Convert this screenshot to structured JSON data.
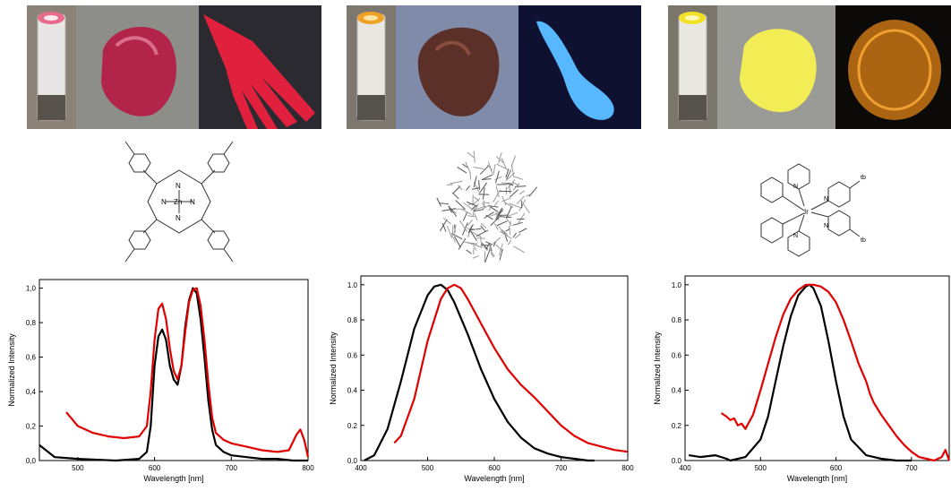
{
  "chart_data": [
    {
      "type": "line",
      "xlabel": "Wavelength [nm]",
      "ylabel": "Normalized Intensity",
      "xlim": [
        450,
        800
      ],
      "ylim": [
        0,
        1.05
      ],
      "xticks": [
        "500",
        "600",
        "700",
        "800"
      ],
      "yticks": [
        "0,0",
        "0,2",
        "0,4",
        "0,6",
        "0,8",
        "1,0"
      ],
      "series": [
        {
          "color": "#000000",
          "x": [
            450,
            470,
            500,
            550,
            580,
            590,
            595,
            600,
            605,
            610,
            615,
            620,
            625,
            630,
            635,
            640,
            645,
            650,
            655,
            660,
            665,
            670,
            675,
            680,
            690,
            700,
            720,
            740,
            760,
            780,
            800
          ],
          "y": [
            0.09,
            0.02,
            0.01,
            0.0,
            0.01,
            0.05,
            0.2,
            0.55,
            0.72,
            0.76,
            0.7,
            0.55,
            0.47,
            0.44,
            0.55,
            0.78,
            0.93,
            1.0,
            0.97,
            0.82,
            0.6,
            0.35,
            0.18,
            0.09,
            0.05,
            0.03,
            0.02,
            0.01,
            0.01,
            0.0,
            0.0
          ]
        },
        {
          "color": "#e00000",
          "x": [
            485,
            500,
            520,
            540,
            560,
            580,
            590,
            595,
            600,
            605,
            610,
            615,
            620,
            625,
            630,
            635,
            640,
            645,
            650,
            655,
            660,
            665,
            670,
            675,
            680,
            690,
            700,
            720,
            740,
            760,
            775,
            785,
            790,
            795,
            800
          ],
          "y": [
            0.28,
            0.2,
            0.16,
            0.14,
            0.13,
            0.14,
            0.2,
            0.4,
            0.7,
            0.88,
            0.91,
            0.82,
            0.65,
            0.52,
            0.47,
            0.55,
            0.75,
            0.92,
            0.99,
            1.0,
            0.9,
            0.7,
            0.45,
            0.25,
            0.16,
            0.12,
            0.1,
            0.08,
            0.06,
            0.05,
            0.06,
            0.15,
            0.18,
            0.12,
            0.02
          ]
        }
      ]
    },
    {
      "type": "line",
      "xlabel": "Wavelength [nm]",
      "ylabel": "Normalized Intensity",
      "xlim": [
        400,
        800
      ],
      "ylim": [
        0,
        1.05
      ],
      "xticks": [
        "400",
        "500",
        "600",
        "700",
        "800"
      ],
      "yticks": [
        "0.0",
        "0.2",
        "0.4",
        "0.6",
        "0.8",
        "1.0"
      ],
      "series": [
        {
          "color": "#000000",
          "x": [
            405,
            420,
            440,
            460,
            480,
            500,
            510,
            520,
            530,
            540,
            560,
            580,
            600,
            620,
            640,
            660,
            680,
            700,
            720,
            740,
            750
          ],
          "y": [
            0.0,
            0.03,
            0.18,
            0.45,
            0.75,
            0.94,
            0.99,
            1.0,
            0.97,
            0.9,
            0.72,
            0.52,
            0.35,
            0.22,
            0.13,
            0.07,
            0.04,
            0.02,
            0.01,
            0.0,
            0.0
          ]
        },
        {
          "color": "#e00000",
          "x": [
            450,
            460,
            480,
            500,
            520,
            530,
            540,
            550,
            560,
            580,
            600,
            620,
            640,
            660,
            680,
            700,
            720,
            740,
            760,
            780,
            800
          ],
          "y": [
            0.1,
            0.14,
            0.35,
            0.68,
            0.92,
            0.98,
            1.0,
            0.98,
            0.92,
            0.78,
            0.64,
            0.52,
            0.43,
            0.36,
            0.28,
            0.2,
            0.14,
            0.1,
            0.08,
            0.06,
            0.05
          ]
        }
      ]
    },
    {
      "type": "line",
      "xlabel": "Wavelength [nm]",
      "ylabel": "Normalized Intensity",
      "xlim": [
        400,
        750
      ],
      "ylim": [
        0,
        1.05
      ],
      "xticks": [
        "400",
        "500",
        "600",
        "700"
      ],
      "yticks": [
        "0.0",
        "0.2",
        "0.4",
        "0.6",
        "0.8",
        "1.0"
      ],
      "series": [
        {
          "color": "#000000",
          "x": [
            405,
            420,
            440,
            455,
            460,
            480,
            500,
            510,
            520,
            530,
            540,
            550,
            560,
            565,
            570,
            580,
            590,
            600,
            610,
            620,
            640,
            660,
            680,
            700
          ],
          "y": [
            0.03,
            0.02,
            0.03,
            0.01,
            0.0,
            0.02,
            0.12,
            0.25,
            0.45,
            0.65,
            0.82,
            0.94,
            0.99,
            1.0,
            0.98,
            0.88,
            0.68,
            0.45,
            0.25,
            0.12,
            0.03,
            0.01,
            0.0,
            0.0
          ]
        },
        {
          "color": "#e00000",
          "x": [
            448,
            455,
            460,
            465,
            470,
            475,
            480,
            490,
            500,
            510,
            520,
            530,
            540,
            550,
            560,
            570,
            580,
            590,
            600,
            610,
            620,
            630,
            640,
            645,
            650,
            660,
            670,
            680,
            690,
            700,
            710,
            720,
            730,
            740,
            745,
            750
          ],
          "y": [
            0.27,
            0.25,
            0.23,
            0.24,
            0.2,
            0.21,
            0.18,
            0.26,
            0.4,
            0.55,
            0.7,
            0.83,
            0.92,
            0.97,
            1.0,
            1.0,
            0.99,
            0.96,
            0.9,
            0.8,
            0.68,
            0.55,
            0.45,
            0.38,
            0.33,
            0.26,
            0.2,
            0.14,
            0.09,
            0.05,
            0.02,
            0.01,
            0.0,
            0.02,
            0.06,
            0.0
          ]
        }
      ]
    }
  ],
  "molecules": {
    "left_labels": [
      "N",
      "N",
      "Zn",
      "N",
      "N"
    ],
    "right_labels": [
      "N",
      "N",
      "Ir",
      "N",
      "N",
      "N",
      "tb",
      "tb"
    ]
  },
  "colors": {
    "porphyrin_solid": "#b3244a",
    "porphyrin_print": "#e0203c",
    "tcnp_solid": "#5a3028",
    "tcnp_print": "#57b8ff",
    "iridium_solid": "#f2ec55",
    "iridium_print": "#e08a18"
  }
}
